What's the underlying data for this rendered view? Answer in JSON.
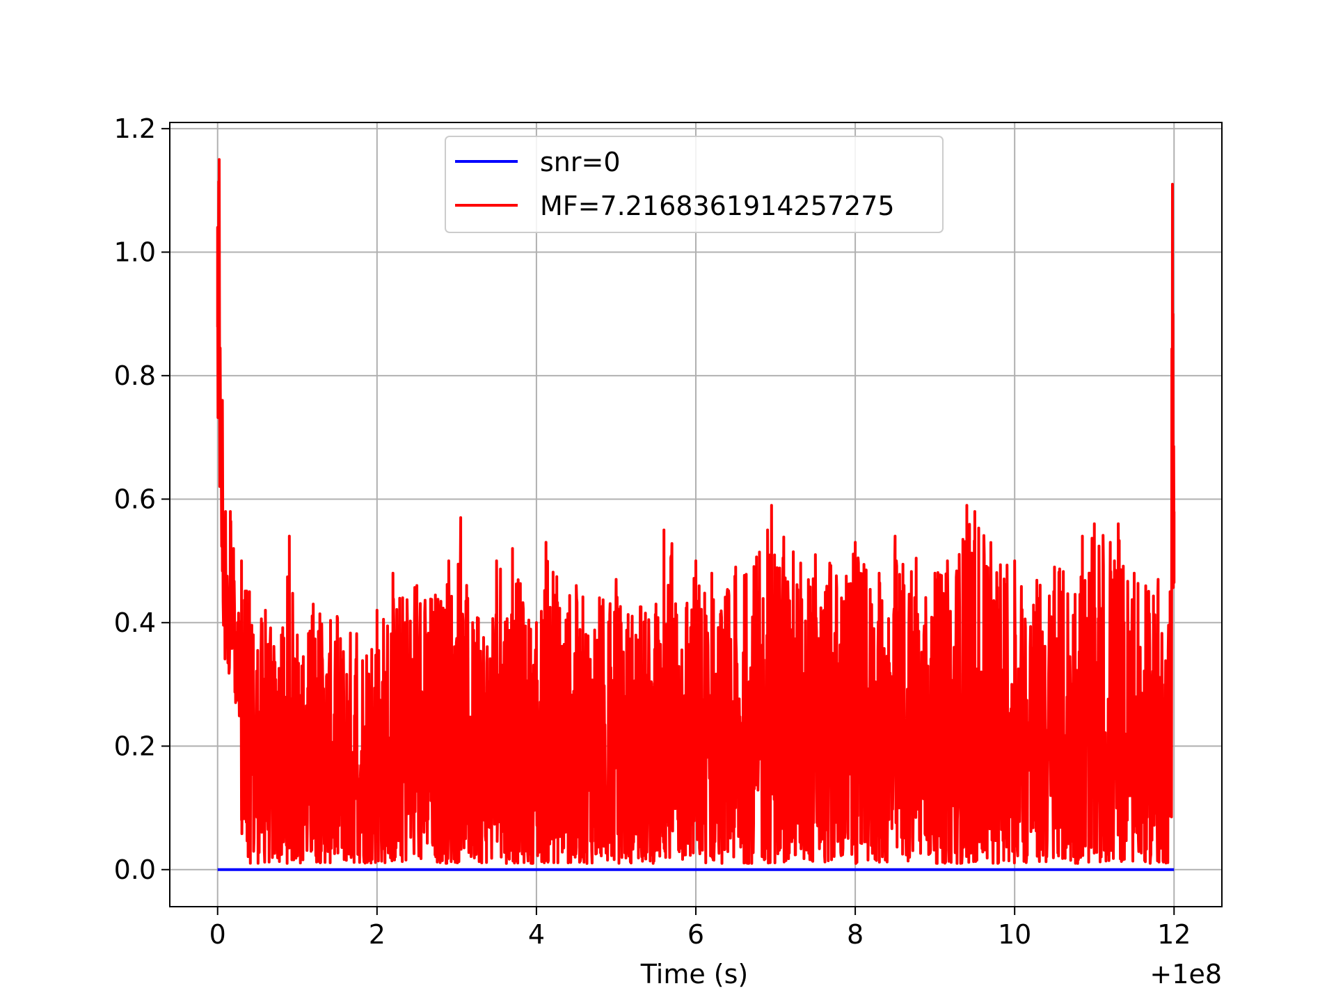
{
  "chart_data": {
    "type": "line",
    "title": "",
    "xlabel": "Time (s)",
    "ylabel": "",
    "x_offset_label": "+1e8",
    "xlim": [
      -0.6,
      12.6
    ],
    "ylim": [
      -0.06,
      1.21
    ],
    "xticks": [
      0,
      2,
      4,
      6,
      8,
      10,
      12
    ],
    "xtick_labels": [
      "0",
      "2",
      "4",
      "6",
      "8",
      "10",
      "12"
    ],
    "yticks": [
      0.0,
      0.2,
      0.4,
      0.6,
      0.8,
      1.0,
      1.2
    ],
    "ytick_labels": [
      "0.0",
      "0.2",
      "0.4",
      "0.6",
      "0.8",
      "1.0",
      "1.2"
    ],
    "grid": true,
    "legend_position": "top-center",
    "series": [
      {
        "name": "snr=0",
        "color": "#0000ff",
        "x": [
          0,
          12
        ],
        "values": [
          0.0,
          0.0
        ]
      },
      {
        "name": "MF=7.2168361914257275",
        "color": "#ff0000",
        "x": [
          0.0,
          0.02,
          0.04,
          0.06,
          0.08,
          0.1,
          0.13,
          0.16,
          0.2,
          0.25,
          0.3,
          0.4,
          0.6,
          0.8,
          0.9,
          1.0,
          1.2,
          1.5,
          2.0,
          2.2,
          2.5,
          2.9,
          3.05,
          3.2,
          3.5,
          3.7,
          4.0,
          4.12,
          4.5,
          5.0,
          5.5,
          5.6,
          6.0,
          6.2,
          6.5,
          6.9,
          6.95,
          7.5,
          8.0,
          8.3,
          8.5,
          9.0,
          9.4,
          9.5,
          10.0,
          10.5,
          10.85,
          11.0,
          11.2,
          11.3,
          11.5,
          11.8,
          11.95,
          11.98,
          12.0
        ],
        "values": [
          1.04,
          1.15,
          0.73,
          0.76,
          0.55,
          0.58,
          0.45,
          0.58,
          0.52,
          0.4,
          0.5,
          0.45,
          0.42,
          0.38,
          0.54,
          0.38,
          0.43,
          0.41,
          0.42,
          0.48,
          0.46,
          0.5,
          0.57,
          0.4,
          0.5,
          0.52,
          0.4,
          0.53,
          0.46,
          0.47,
          0.43,
          0.55,
          0.5,
          0.48,
          0.49,
          0.55,
          0.59,
          0.51,
          0.53,
          0.48,
          0.54,
          0.48,
          0.59,
          0.58,
          0.5,
          0.49,
          0.54,
          0.56,
          0.53,
          0.56,
          0.48,
          0.47,
          0.45,
          1.11,
          0.58
        ]
      }
    ]
  }
}
